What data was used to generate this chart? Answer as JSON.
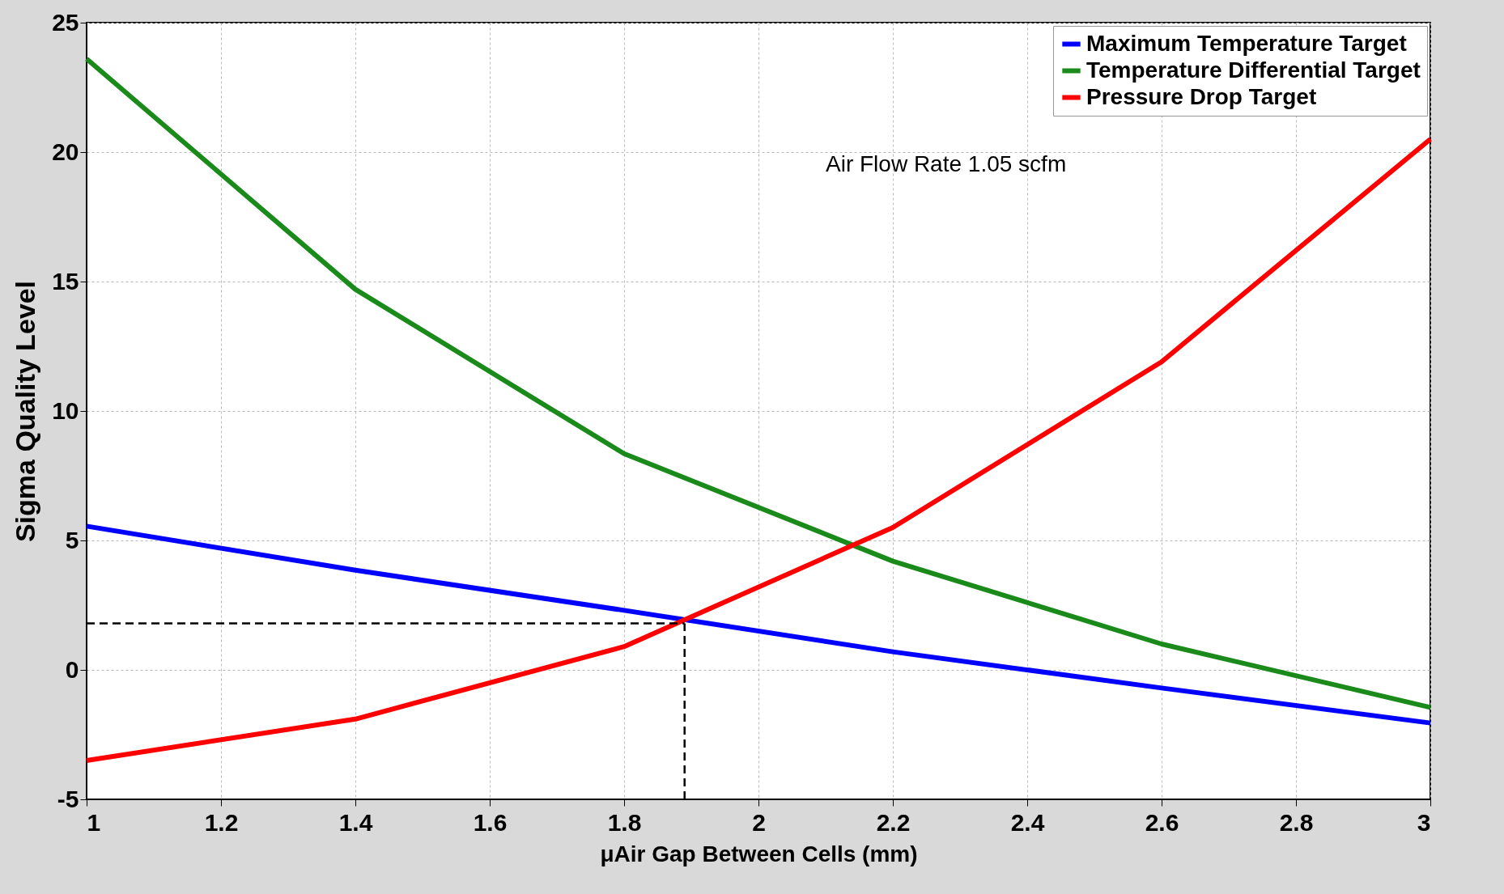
{
  "chart_data": {
    "type": "line",
    "xlabel": "μAir Gap Between Cells (mm)",
    "ylabel": "Sigma Quality Level",
    "x": [
      1,
      1.4,
      1.8,
      2.2,
      2.6,
      3
    ],
    "series": [
      {
        "name": "Maximum Temperature Target",
        "color": "#0000ff",
        "values": [
          5.55,
          3.85,
          2.3,
          0.7,
          -0.7,
          -2.05
        ]
      },
      {
        "name": "Temperature Differential Target",
        "color": "#1a8a1a",
        "values": [
          23.6,
          14.7,
          8.35,
          4.2,
          1.0,
          -1.45
        ]
      },
      {
        "name": "Pressure Drop Target",
        "color": "#ff0000",
        "values": [
          -3.5,
          -1.9,
          0.9,
          5.5,
          11.9,
          20.5
        ]
      }
    ],
    "xlim": [
      1,
      3
    ],
    "xticks": [
      1,
      1.2,
      1.4,
      1.6,
      1.8,
      2,
      2.2,
      2.4,
      2.6,
      2.8,
      3
    ],
    "ylim": [
      -5,
      25
    ],
    "yticks": [
      -5,
      0,
      5,
      10,
      15,
      20,
      25
    ],
    "ref_lines": [
      {
        "axis": "y",
        "value": 1.8,
        "color": "#000000",
        "line_style": "dashed"
      },
      {
        "axis": "x",
        "value": 1.89,
        "color": "#000000",
        "line_style": "dashed"
      }
    ],
    "annotations": [
      "Air Flow Rate 1.05 scfm"
    ],
    "grid": true,
    "legend": "top right",
    "line_style": "solid",
    "marker": "none"
  }
}
